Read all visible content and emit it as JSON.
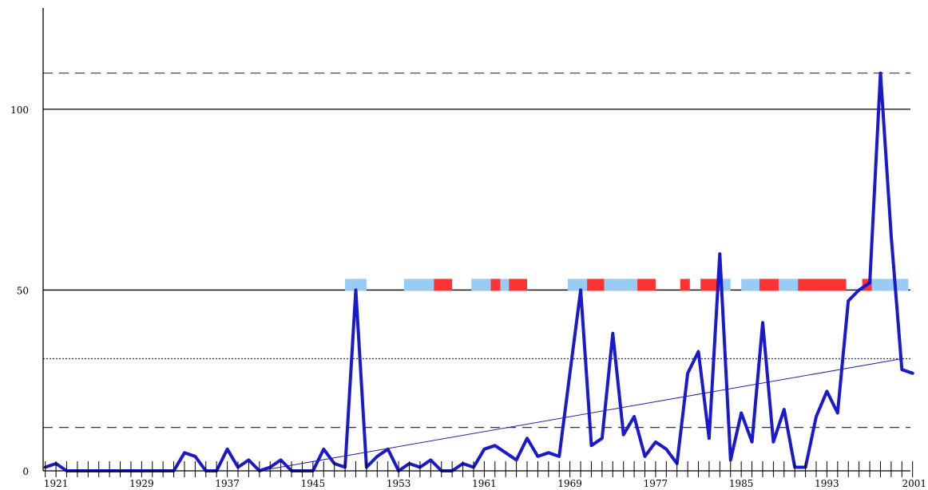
{
  "chart_data": {
    "type": "line",
    "x": [
      1920,
      1921,
      1922,
      1923,
      1924,
      1925,
      1926,
      1927,
      1928,
      1929,
      1930,
      1931,
      1932,
      1933,
      1934,
      1935,
      1936,
      1937,
      1938,
      1939,
      1940,
      1941,
      1942,
      1943,
      1944,
      1945,
      1946,
      1947,
      1948,
      1949,
      1950,
      1951,
      1952,
      1953,
      1954,
      1955,
      1956,
      1957,
      1958,
      1959,
      1960,
      1961,
      1962,
      1963,
      1964,
      1965,
      1966,
      1967,
      1968,
      1969,
      1970,
      1971,
      1972,
      1973,
      1974,
      1975,
      1976,
      1977,
      1978,
      1979,
      1980,
      1981,
      1982,
      1983,
      1984,
      1985,
      1986,
      1987,
      1988,
      1989,
      1990,
      1991,
      1992,
      1993,
      1994,
      1995,
      1996,
      1997,
      1998,
      1999,
      2000,
      2001
    ],
    "series": [
      {
        "values": [
          1,
          2,
          0,
          0,
          0,
          0,
          0,
          0,
          0,
          0,
          0,
          0,
          0,
          5,
          4,
          0,
          0,
          6,
          1,
          3,
          0,
          1,
          3,
          0,
          0,
          0,
          6,
          2,
          1,
          50,
          1,
          4,
          6,
          0,
          2,
          1,
          3,
          0,
          0,
          2,
          1,
          6,
          7,
          5,
          3,
          9,
          4,
          5,
          4,
          27,
          50,
          7,
          9,
          38,
          10,
          15,
          4,
          8,
          6,
          2,
          27,
          33,
          9,
          60,
          3,
          16,
          8,
          41,
          8,
          17,
          1,
          1,
          15,
          22,
          16,
          47,
          50,
          52,
          110,
          65,
          28,
          27
        ]
      }
    ],
    "trend": {
      "x": [
        1940,
        2000
      ],
      "y": [
        0,
        31
      ]
    },
    "reference_lines": {
      "solid": [
        50,
        100
      ],
      "dashed": [
        12,
        110
      ],
      "dotted": [
        31
      ]
    },
    "markers_y": 50,
    "markers": [
      {
        "from": 1948,
        "to": 1950,
        "color": "#99ccf5"
      },
      {
        "from": 1953.5,
        "to": 1956.3,
        "color": "#99ccf5"
      },
      {
        "from": 1956.3,
        "to": 1958,
        "color": "#ff3333"
      },
      {
        "from": 1959.8,
        "to": 1961.6,
        "color": "#99ccf5"
      },
      {
        "from": 1961.6,
        "to": 1962.5,
        "color": "#ff3333"
      },
      {
        "from": 1962.5,
        "to": 1963.3,
        "color": "#99ccf5"
      },
      {
        "from": 1963.3,
        "to": 1965,
        "color": "#ff3333"
      },
      {
        "from": 1968.8,
        "to": 1970.6,
        "color": "#99ccf5"
      },
      {
        "from": 1970.6,
        "to": 1972.2,
        "color": "#ff3333"
      },
      {
        "from": 1972.2,
        "to": 1975.3,
        "color": "#99ccf5"
      },
      {
        "from": 1975.3,
        "to": 1977,
        "color": "#ff3333"
      },
      {
        "from": 1979.3,
        "to": 1980.2,
        "color": "#ff3333"
      },
      {
        "from": 1981.2,
        "to": 1983,
        "color": "#ff3333"
      },
      {
        "from": 1983,
        "to": 1984,
        "color": "#99ccf5"
      },
      {
        "from": 1985,
        "to": 1986.7,
        "color": "#99ccf5"
      },
      {
        "from": 1986.7,
        "to": 1988.5,
        "color": "#ff3333"
      },
      {
        "from": 1988.5,
        "to": 1990.3,
        "color": "#99ccf5"
      },
      {
        "from": 1990.3,
        "to": 1994.8,
        "color": "#ff3333"
      },
      {
        "from": 1996.3,
        "to": 1997.2,
        "color": "#ff3333"
      },
      {
        "from": 1997.2,
        "to": 2000.6,
        "color": "#99ccf5"
      }
    ],
    "xlim": [
      1919.8,
      2000.8
    ],
    "ylim": [
      0,
      128
    ],
    "y_ticks": [
      0,
      50,
      100
    ],
    "x_tick_labels": [
      "1921",
      "1929",
      "1937",
      "1945",
      "1953",
      "1961",
      "1969",
      "1977",
      "1985",
      "1993",
      "2001"
    ],
    "grid": false,
    "title": "",
    "xlabel": "",
    "ylabel": "",
    "colors": {
      "line": "#1a1acc",
      "trend": "#2222bb",
      "ref_dash": "#2a2a9a",
      "axis": "#000000",
      "marker_blue": "#99ccf5",
      "marker_red": "#ff3333"
    }
  }
}
